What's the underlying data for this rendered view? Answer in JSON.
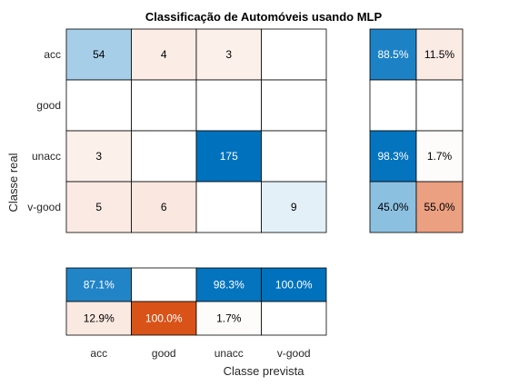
{
  "chart_data": {
    "type": "heatmap",
    "title": "Classificação de Automóveis usando MLP",
    "xlabel": "Classe prevista",
    "ylabel": "Classe real",
    "classes": [
      "acc",
      "good",
      "unacc",
      "v-good"
    ],
    "matrix": [
      [
        54,
        4,
        3,
        null
      ],
      [
        null,
        null,
        null,
        null
      ],
      [
        3,
        null,
        175,
        null
      ],
      [
        5,
        6,
        null,
        9
      ]
    ],
    "row_summary": {
      "rows": [
        [
          "88.5%",
          "11.5%"
        ],
        [
          "",
          ""
        ],
        [
          "98.3%",
          "1.7%"
        ],
        [
          "45.0%",
          "55.0%"
        ]
      ]
    },
    "col_summary": {
      "rows": [
        [
          "87.1%",
          "",
          "98.3%",
          "100.0%"
        ],
        [
          "12.9%",
          "100.0%",
          "1.7%",
          ""
        ]
      ]
    },
    "colors": {
      "correct": "#0072BD",
      "incorrect": "#D95319",
      "border": "#000000"
    }
  }
}
